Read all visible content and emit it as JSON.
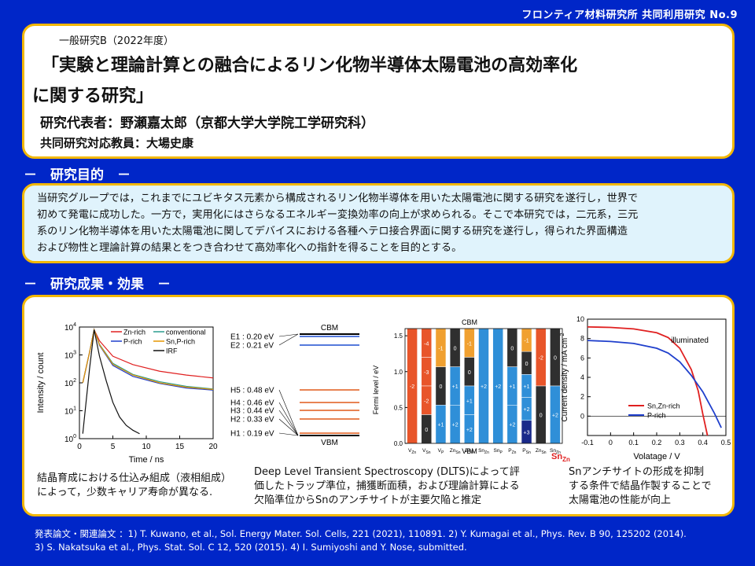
{
  "header": {
    "label": "フロンティア材料研究所 共同利用研究 No.9"
  },
  "title_panel": {
    "category": "一般研究B（2022年度）",
    "title_line1": "「実験と理論計算との融合によるリン化物半導体太陽電池の高効率化",
    "title_line2": "に関する研究」",
    "pi": "研究代表者：野瀬嘉太郎（京都大学大学院工学研究科）",
    "staff": "共同研究対応教員：大場史康"
  },
  "sections": {
    "purpose_heading": "－　研究目的　－",
    "results_heading": "－　研究成果・効果　－"
  },
  "purpose": {
    "lines": [
      "当研究グループでは，これまでにユビキタス元素から構成されるリン化物半導体を用いた太陽電池に関する研究を遂行し，世界で",
      "初めて発電に成功した。一方で，実用化にはさらなるエネルギー変換効率の向上が求められる。そこで本研究では，二元系，三元",
      "系のリン化物半導体を用いた太陽電池に関してデバイスにおける各種ヘテロ接合界面に関する研究を遂行し，得られた界面構造",
      "および物性と理論計算の結果とをつき合わせて高効率化への指針を得ることを目的とする。"
    ]
  },
  "captions": {
    "c1": [
      "結晶育成における仕込み組成（液相組成）",
      "によって，少数キャリア寿命が異なる."
    ],
    "c2": [
      "Deep Level Transient Spectroscopy (DLTS)によって評",
      "価したトラップ準位，捕獲断面積，および理論計算による",
      "欠陥準位からSnのアンチサイトが主要欠陥と推定"
    ],
    "c3": [
      "Snアンチサイトの形成を抑制",
      "する条件で結晶作製することで",
      "太陽電池の性能が向上"
    ]
  },
  "references": {
    "line1": "発表論文・関連論文 ：1) T. Kuwano, et al., Sol. Energy Mater. Sol. Cells, 221 (2021), 110891. 2) Y. Kumagai et al., Phys. Rev. B 90, 125202 (2014).",
    "line2": "3) S. Nakatsuka et al., Phys. Stat. Sol. C 12, 520 (2015). 4) I. Sumiyoshi and Y. Nose, submitted."
  },
  "chart_data": [
    {
      "type": "line",
      "xlabel": "Time / ns",
      "ylabel": "Intensity / count",
      "xlim": [
        0,
        20
      ],
      "ylim": [
        1,
        10000
      ],
      "yscale": "log",
      "x_ticks": [
        "0",
        "5",
        "10",
        "15",
        "20"
      ],
      "y_ticks": [
        "10^0",
        "10^1",
        "10^2",
        "10^3",
        "10^4"
      ],
      "series": [
        {
          "name": "Zn-rich",
          "color": "#e02020",
          "x": [
            0.5,
            1.5,
            2.2,
            3,
            5,
            8,
            12,
            16,
            20
          ],
          "y": [
            100,
            1200,
            8000,
            3200,
            900,
            450,
            260,
            190,
            150
          ]
        },
        {
          "name": "conventional",
          "color": "#2a9d8f",
          "x": [
            0.5,
            1.5,
            2.2,
            3,
            5,
            8,
            12,
            16,
            20
          ],
          "y": [
            100,
            1200,
            8000,
            2400,
            500,
            200,
            110,
            75,
            60
          ]
        },
        {
          "name": "P-rich",
          "color": "#1f3fcc",
          "x": [
            0.5,
            1.5,
            2.2,
            3,
            5,
            8,
            12,
            16,
            20
          ],
          "y": [
            100,
            1200,
            8000,
            2200,
            420,
            170,
            95,
            65,
            55
          ]
        },
        {
          "name": "Sn,P-rich",
          "color": "#e69500",
          "x": [
            0.5,
            1.5,
            2.2,
            3,
            5,
            8,
            12,
            16,
            20
          ],
          "y": [
            100,
            1200,
            8000,
            2300,
            460,
            190,
            100,
            70,
            58
          ]
        },
        {
          "name": "IRF",
          "color": "#111111",
          "x": [
            0.5,
            1.5,
            2.2,
            3,
            4,
            5,
            6,
            7,
            8,
            9
          ],
          "y": [
            1.5,
            300,
            8000,
            900,
            120,
            20,
            6,
            3,
            2,
            1.5
          ]
        }
      ]
    },
    {
      "type": "table",
      "levels_top": "CBM",
      "levels_bottom": "VBM",
      "levels": [
        {
          "label": "E1 : 0.20 eV",
          "color": "#1f4fd0",
          "band": "CBM"
        },
        {
          "label": "E2 : 0.21 eV",
          "color": "#1f4fd0",
          "band": "CBM"
        },
        {
          "label": "H5 : 0.48 eV",
          "color": "#e05a1a",
          "band": "VBM"
        },
        {
          "label": "H4 : 0.46 eV",
          "color": "#e05a1a",
          "band": "VBM"
        },
        {
          "label": "H3 : 0.44 eV",
          "color": "#e05a1a",
          "band": "VBM"
        },
        {
          "label": "H2 : 0.33 eV",
          "color": "#e05a1a",
          "band": "VBM"
        },
        {
          "label": "H1 : 0.19 eV",
          "color": "#e05a1a",
          "band": "VBM"
        }
      ]
    },
    {
      "type": "bar",
      "ylabel": "Fermi level / eV",
      "ylim": [
        0,
        1.6
      ],
      "top_label": "CBM",
      "bottom_label": "VBM",
      "highlight_label": "Sn",
      "highlight_sub": "Zn",
      "categories": [
        "V_Zn",
        "V_Sn",
        "V_P",
        "Zn_Sn",
        "Zn_P",
        "Sn_Zn",
        "Sn_P",
        "P_Zn",
        "P_Sn",
        "Zn_Sn",
        "Sn_Zn"
      ],
      "charge_labels": [
        [
          "-2"
        ],
        [
          "-4",
          "-3",
          "-2",
          "0"
        ],
        [
          "-1",
          "0",
          "+1"
        ],
        [
          "0",
          "+1",
          "+2"
        ],
        [
          "-1",
          "0",
          "+1",
          "+2"
        ],
        [
          "+2"
        ],
        [
          "+2"
        ],
        [
          "0",
          "+1",
          "+2"
        ],
        [
          "-1",
          "0",
          "+1",
          "+2",
          "+3"
        ],
        [
          "-2",
          "0"
        ],
        [
          "0",
          "+2"
        ]
      ],
      "colors": {
        "negative": "#e8552a",
        "minus1": "#f0a030",
        "neutral": "#2f2f2f",
        "positive": "#2f8fd8",
        "plus3": "#1a2a8a"
      }
    },
    {
      "type": "line",
      "xlabel": "Volatage / V",
      "ylabel": "Current density / mA cm^-2",
      "xlim": [
        -0.1,
        0.5
      ],
      "ylim": [
        -2,
        10
      ],
      "x_ticks": [
        "-0.1",
        "0",
        "0.1",
        "0.2",
        "0.3",
        "0.4",
        "0.5"
      ],
      "y_ticks": [
        "0",
        "2",
        "4",
        "6",
        "8",
        "10"
      ],
      "annotation": "illuminated",
      "series": [
        {
          "name": "Sn,Zn-rich",
          "color": "#e02020",
          "x": [
            -0.1,
            0,
            0.1,
            0.2,
            0.25,
            0.3,
            0.35,
            0.38,
            0.4,
            0.42
          ],
          "y": [
            9.2,
            9.15,
            9.0,
            8.6,
            8.1,
            7.0,
            4.8,
            2.6,
            0.2,
            -2
          ]
        },
        {
          "name": "P-rich",
          "color": "#1f3fcc",
          "x": [
            -0.1,
            0,
            0.1,
            0.2,
            0.25,
            0.3,
            0.35,
            0.4,
            0.45,
            0.48
          ],
          "y": [
            7.8,
            7.7,
            7.5,
            7.0,
            6.5,
            5.6,
            4.2,
            2.5,
            0.3,
            -1.2
          ]
        }
      ]
    }
  ]
}
